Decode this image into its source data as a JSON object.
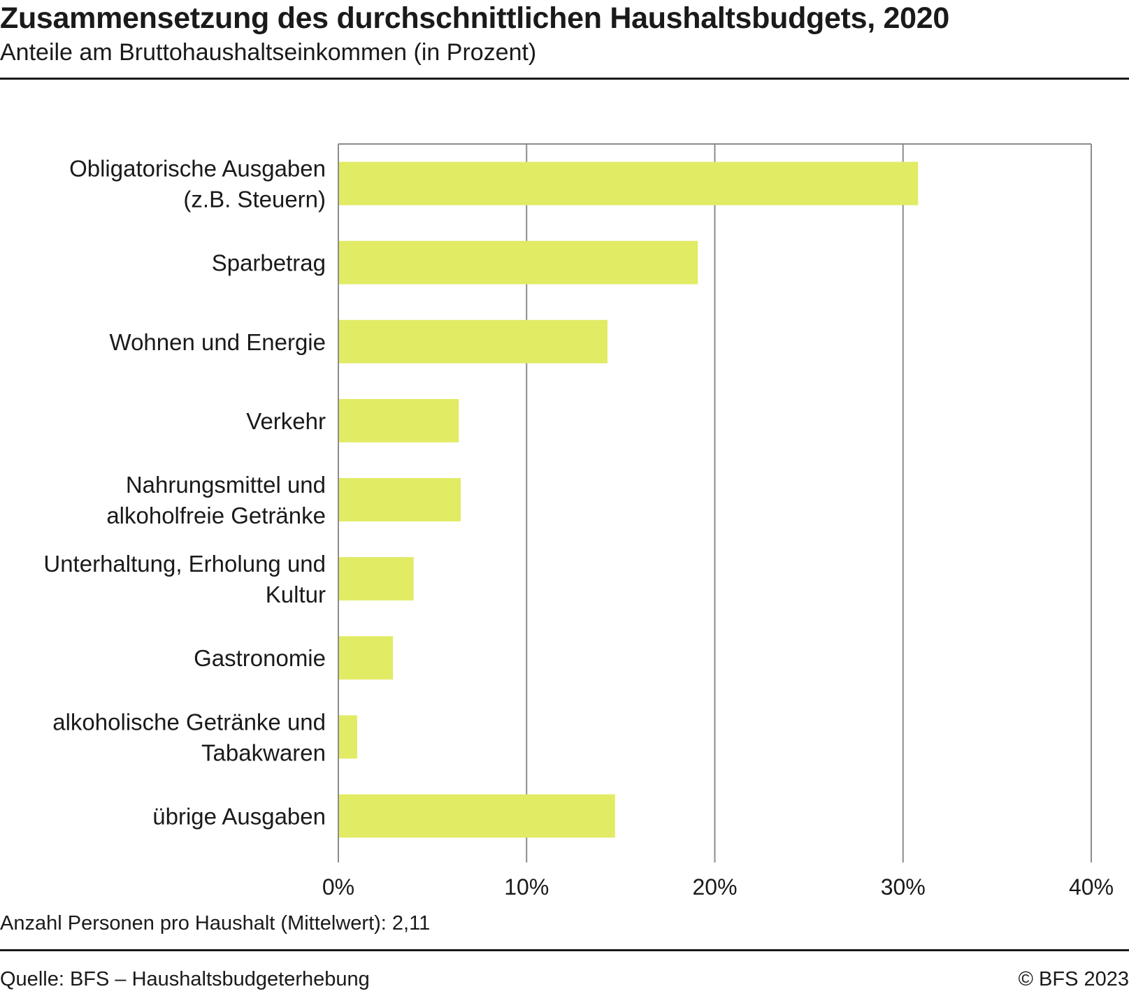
{
  "header": {
    "title": "Zusammensetzung des durchschnittlichen Haushaltsbudgets, 2020",
    "subtitle": "Anteile am Bruttohaushaltseinkommen (in Prozent)"
  },
  "footer": {
    "note": "Anzahl Personen pro Haushalt (Mittelwert): 2,11",
    "source": "Quelle: BFS – Haushaltsbudgeterhebung",
    "copyright": "© BFS 2023"
  },
  "colors": {
    "bar": "#e1eb64",
    "grid": "#8c8c8c",
    "text": "#1a1a1a"
  },
  "chart_data": {
    "type": "bar",
    "orientation": "horizontal",
    "categories": [
      [
        "Obligatorische Ausgaben",
        "(z.B. Steuern)"
      ],
      [
        "Sparbetrag"
      ],
      [
        "Wohnen und Energie"
      ],
      [
        "Verkehr"
      ],
      [
        "Nahrungsmittel und",
        "alkoholfreie Getränke"
      ],
      [
        "Unterhaltung, Erholung und",
        "Kultur"
      ],
      [
        "Gastronomie"
      ],
      [
        "alkoholische Getränke und",
        "Tabakwaren"
      ],
      [
        "übrige Ausgaben"
      ]
    ],
    "values": [
      30.8,
      19.1,
      14.3,
      6.4,
      6.5,
      4.0,
      2.9,
      1.0,
      14.7
    ],
    "xlim": [
      0,
      40
    ],
    "xticks": [
      0,
      10,
      20,
      30,
      40
    ],
    "xtick_labels": [
      "0%",
      "10%",
      "20%",
      "30%",
      "40%"
    ],
    "grid": true,
    "legend": "none"
  }
}
